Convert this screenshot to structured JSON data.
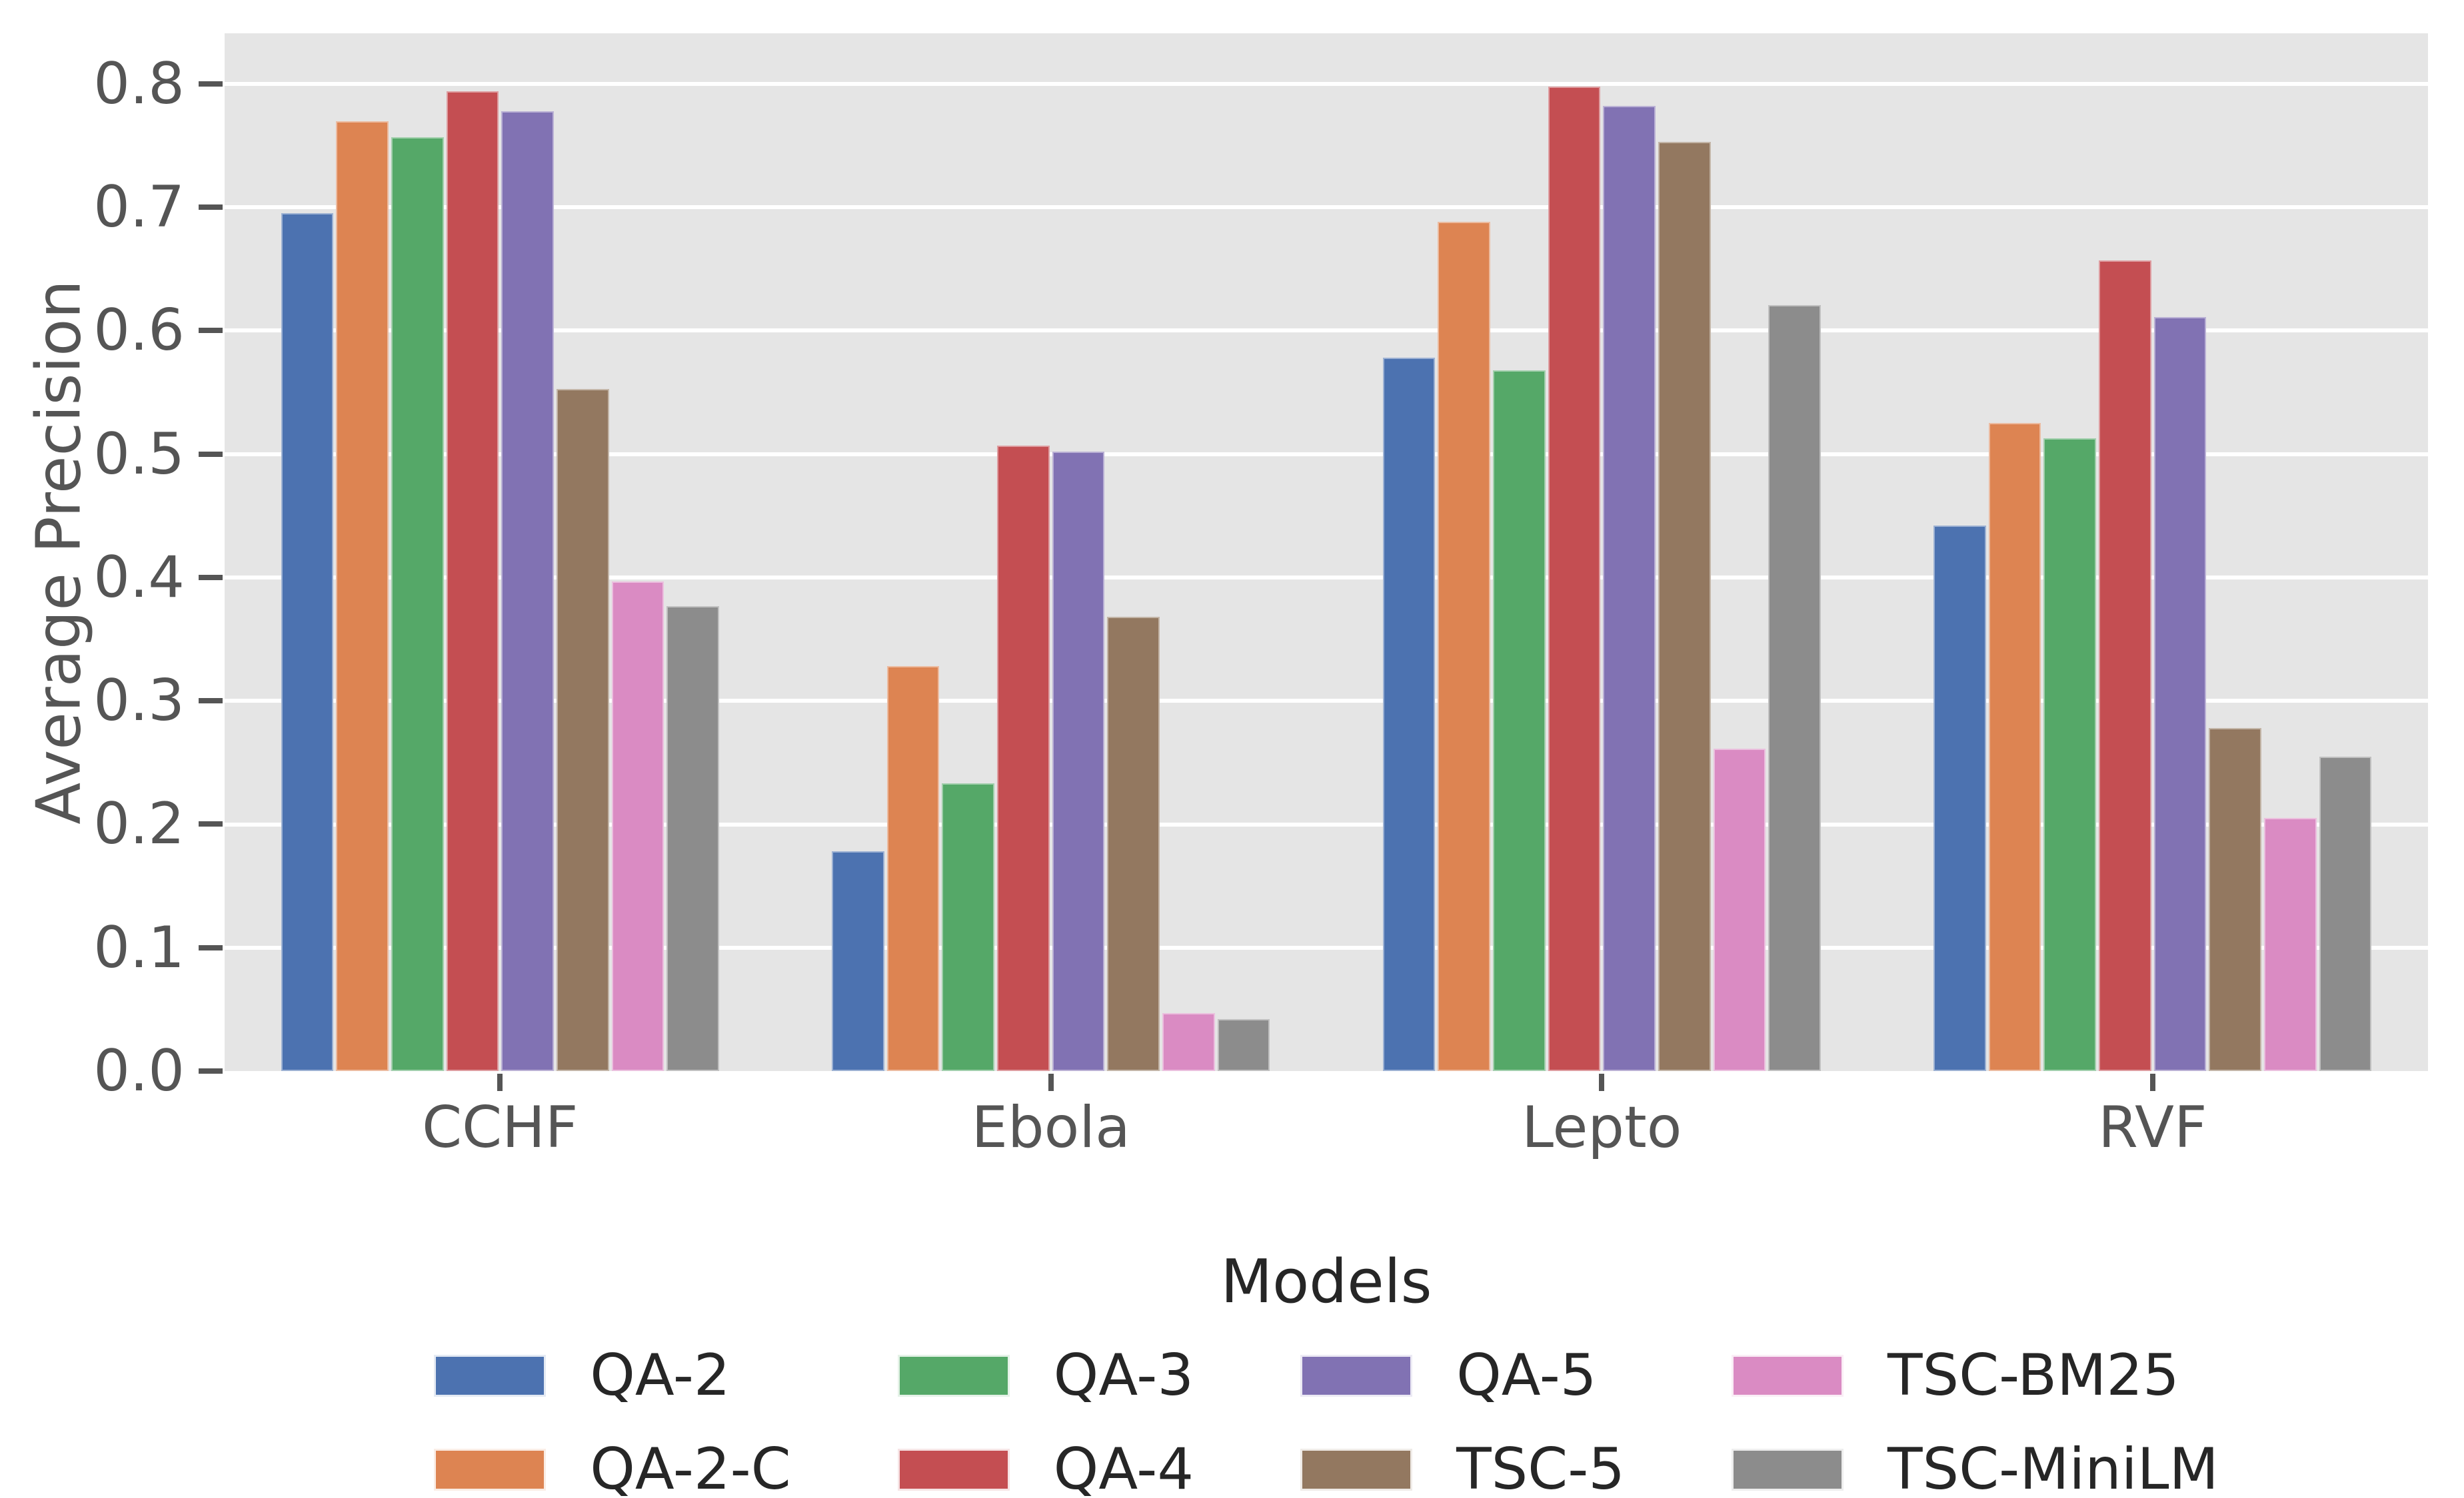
{
  "figure": {
    "background": "#ffffff",
    "plot_background": "#E5E5E5",
    "gridline_color": "#ffffff",
    "tick_color": "#555555",
    "legend_text_color": "#262626"
  },
  "chart_data": {
    "type": "bar",
    "title": "",
    "xlabel": "",
    "ylabel": "Average Precision",
    "legend_title": "Models",
    "legend_position": "below-center",
    "grid": "horizontal-white",
    "categories": [
      "CCHF",
      "Ebola",
      "Lepto",
      "RVF"
    ],
    "series": [
      {
        "name": "QA-2",
        "color": "#4C72B0",
        "values": [
          0.695,
          0.178,
          0.578,
          0.442
        ]
      },
      {
        "name": "QA-2-C",
        "color": "#DD8452",
        "values": [
          0.77,
          0.328,
          0.688,
          0.525
        ]
      },
      {
        "name": "QA-3",
        "color": "#55A868",
        "values": [
          0.757,
          0.233,
          0.568,
          0.513
        ]
      },
      {
        "name": "QA-4",
        "color": "#C44E52",
        "values": [
          0.794,
          0.507,
          0.798,
          0.657
        ]
      },
      {
        "name": "QA-5",
        "color": "#8172B3",
        "values": [
          0.778,
          0.502,
          0.782,
          0.611
        ]
      },
      {
        "name": "TSC-5",
        "color": "#937860",
        "values": [
          0.553,
          0.368,
          0.753,
          0.278
        ]
      },
      {
        "name": "TSC-BM25",
        "color": "#DA8BC3",
        "values": [
          0.397,
          0.047,
          0.261,
          0.205
        ]
      },
      {
        "name": "TSC-MiniLM",
        "color": "#8C8C8C",
        "values": [
          0.377,
          0.042,
          0.621,
          0.255
        ]
      }
    ],
    "yticks": [
      0.0,
      0.1,
      0.2,
      0.3,
      0.4,
      0.5,
      0.6,
      0.7,
      0.8
    ],
    "ytick_labels": [
      "0.0",
      "0.1",
      "0.2",
      "0.3",
      "0.4",
      "0.5",
      "0.6",
      "0.7",
      "0.8"
    ],
    "ylim": [
      0,
      0.841
    ],
    "legend_columns": [
      [
        "QA-2",
        "QA-2-C"
      ],
      [
        "QA-3",
        "QA-4"
      ],
      [
        "QA-5",
        "TSC-5"
      ],
      [
        "TSC-BM25",
        "TSC-MiniLM"
      ]
    ]
  }
}
